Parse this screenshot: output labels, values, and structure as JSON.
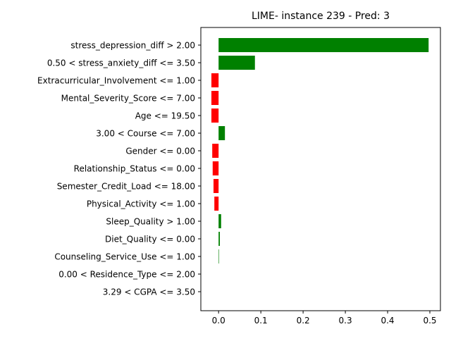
{
  "chart_data": {
    "type": "bar",
    "orientation": "horizontal",
    "title": "LIME- instance 239 - Pred: 3",
    "xlabel": "",
    "ylabel": "",
    "xlim": [
      -0.042,
      0.525
    ],
    "xticks": [
      0.0,
      0.1,
      0.2,
      0.3,
      0.4,
      0.5
    ],
    "xtick_labels": [
      "0.0",
      "0.1",
      "0.2",
      "0.3",
      "0.4",
      "0.5"
    ],
    "grid": false,
    "positive_color": "#008000",
    "negative_color": "#ff0000",
    "categories": [
      "stress_depression_diff > 2.00",
      "0.50 < stress_anxiety_diff <= 3.50",
      "Extracurricular_Involvement <= 1.00",
      "Mental_Severity_Score <= 7.00",
      "Age <= 19.50",
      "3.00 < Course <= 7.00",
      "Gender <= 0.00",
      "Relationship_Status <= 0.00",
      "Semester_Credit_Load <= 18.00",
      "Physical_Activity <= 1.00",
      "Sleep_Quality > 1.00",
      "Diet_Quality <= 0.00",
      "Counseling_Service_Use <= 1.00",
      "0.00 < Residence_Type <= 2.00",
      "3.29 < CGPA <= 3.50"
    ],
    "values": [
      0.497,
      0.086,
      -0.017,
      -0.017,
      -0.017,
      0.015,
      -0.015,
      -0.014,
      -0.012,
      -0.01,
      0.006,
      0.003,
      0.001,
      0.0,
      0.0
    ]
  }
}
